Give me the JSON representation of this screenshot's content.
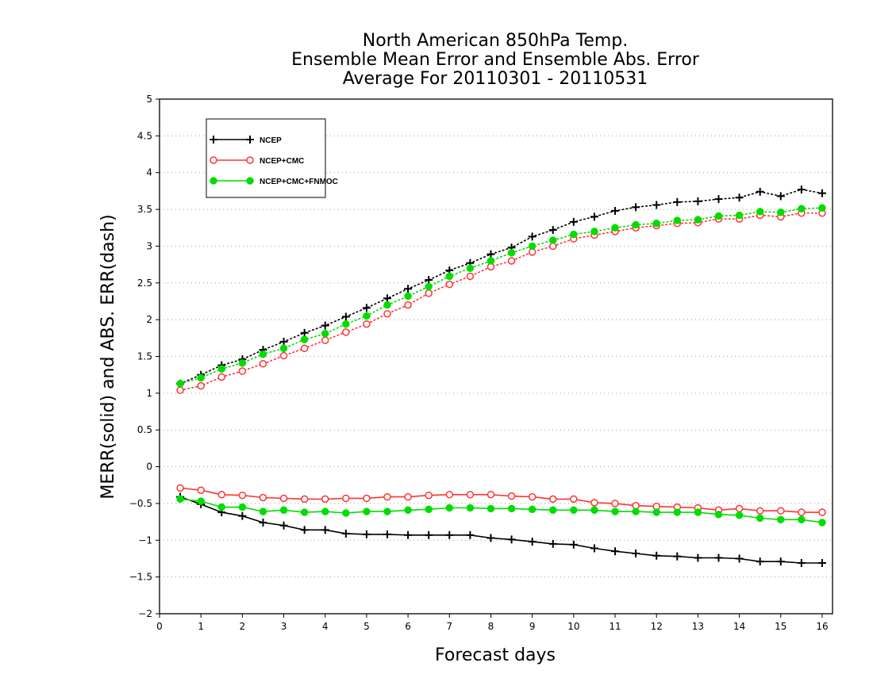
{
  "chart_data": {
    "type": "line",
    "title": [
      "North American 850hPa Temp.",
      "Ensemble Mean Error and Ensemble Abs. Error",
      "Average For 20110301 - 20110531"
    ],
    "xlabel": "Forecast days",
    "ylabel": "MERR(solid) and ABS. ERR(dash)",
    "xlim": [
      0,
      16.25
    ],
    "ylim": [
      -2,
      5
    ],
    "xticks": [
      "0",
      "1",
      "2",
      "3",
      "4",
      "5",
      "6",
      "7",
      "8",
      "9",
      "10",
      "11",
      "12",
      "13",
      "14",
      "15",
      "16"
    ],
    "yticks": [
      "5",
      "4.5",
      "4",
      "3.5",
      "3",
      "2.5",
      "2",
      "1.5",
      "1",
      "0.5",
      "0",
      "-0.5",
      "-1",
      "-1.5",
      "-2"
    ],
    "grid": true,
    "legend_position": "top-left",
    "x": [
      0.5,
      1,
      1.5,
      2,
      2.5,
      3,
      3.5,
      4,
      4.5,
      5,
      5.5,
      6,
      6.5,
      7,
      7.5,
      8,
      8.5,
      9,
      9.5,
      10,
      10.5,
      11,
      11.5,
      12,
      12.5,
      13,
      13.5,
      14,
      14.5,
      15,
      15.5,
      16
    ],
    "series": [
      {
        "name": "NCEP",
        "color": "#000000",
        "marker": "plus",
        "abs_err": [
          1.13,
          1.25,
          1.38,
          1.46,
          1.59,
          1.7,
          1.82,
          1.92,
          2.04,
          2.16,
          2.29,
          2.42,
          2.54,
          2.67,
          2.77,
          2.89,
          2.98,
          3.13,
          3.22,
          3.33,
          3.4,
          3.48,
          3.53,
          3.56,
          3.6,
          3.61,
          3.64,
          3.66,
          3.74,
          3.68,
          3.77,
          3.72
        ],
        "mean_err": [
          -0.41,
          -0.51,
          -0.62,
          -0.67,
          -0.76,
          -0.8,
          -0.86,
          -0.86,
          -0.91,
          -0.92,
          -0.92,
          -0.93,
          -0.93,
          -0.93,
          -0.93,
          -0.97,
          -0.99,
          -1.02,
          -1.05,
          -1.06,
          -1.11,
          -1.15,
          -1.18,
          -1.21,
          -1.22,
          -1.24,
          -1.24,
          -1.25,
          -1.29,
          -1.29,
          -1.31,
          -1.31
        ]
      },
      {
        "name": "NCEP+CMC",
        "color": "#ff3333",
        "marker": "open-circle",
        "abs_err": [
          1.04,
          1.1,
          1.22,
          1.3,
          1.4,
          1.51,
          1.61,
          1.72,
          1.83,
          1.94,
          2.08,
          2.2,
          2.36,
          2.48,
          2.59,
          2.72,
          2.8,
          2.92,
          3.0,
          3.1,
          3.15,
          3.2,
          3.25,
          3.28,
          3.31,
          3.32,
          3.37,
          3.37,
          3.42,
          3.4,
          3.45,
          3.45
        ],
        "mean_err": [
          -0.29,
          -0.32,
          -0.38,
          -0.39,
          -0.42,
          -0.43,
          -0.44,
          -0.44,
          -0.43,
          -0.43,
          -0.41,
          -0.41,
          -0.39,
          -0.38,
          -0.38,
          -0.38,
          -0.4,
          -0.41,
          -0.44,
          -0.44,
          -0.49,
          -0.5,
          -0.53,
          -0.54,
          -0.55,
          -0.56,
          -0.59,
          -0.57,
          -0.6,
          -0.6,
          -0.62,
          -0.62
        ]
      },
      {
        "name": "NCEP+CMC+FNMOC",
        "color": "#00dd00",
        "marker": "filled-circle",
        "abs_err": [
          1.13,
          1.21,
          1.33,
          1.41,
          1.53,
          1.61,
          1.73,
          1.81,
          1.94,
          2.05,
          2.2,
          2.32,
          2.45,
          2.59,
          2.7,
          2.8,
          2.91,
          3.0,
          3.08,
          3.16,
          3.2,
          3.25,
          3.29,
          3.31,
          3.35,
          3.36,
          3.41,
          3.42,
          3.47,
          3.46,
          3.51,
          3.52
        ],
        "mean_err": [
          -0.44,
          -0.47,
          -0.55,
          -0.55,
          -0.61,
          -0.59,
          -0.62,
          -0.61,
          -0.63,
          -0.61,
          -0.61,
          -0.59,
          -0.58,
          -0.56,
          -0.56,
          -0.57,
          -0.57,
          -0.58,
          -0.59,
          -0.59,
          -0.59,
          -0.61,
          -0.61,
          -0.62,
          -0.62,
          -0.62,
          -0.65,
          -0.66,
          -0.7,
          -0.72,
          -0.72,
          -0.76
        ]
      }
    ]
  }
}
